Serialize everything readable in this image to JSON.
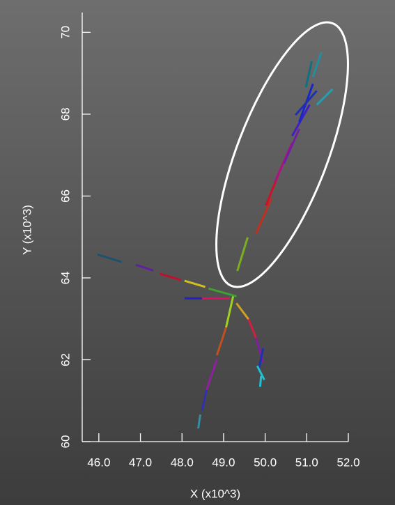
{
  "chart_data": {
    "type": "line",
    "x_label": "X (x10^3)",
    "y_label": "Y (x10^3)",
    "xlim": [
      45.6,
      52.0
    ],
    "ylim": [
      60,
      70.5
    ],
    "xticks": [
      {
        "value": 46,
        "label": "46.0"
      },
      {
        "value": 47,
        "label": "47.0"
      },
      {
        "value": 48,
        "label": "48.0"
      },
      {
        "value": 49,
        "label": "49.0"
      },
      {
        "value": 50,
        "label": "50.0"
      },
      {
        "value": 51,
        "label": "51.0"
      },
      {
        "value": 52,
        "label": "52.0"
      }
    ],
    "yticks": [
      60,
      62,
      64,
      66,
      68,
      70
    ],
    "series": [
      {
        "color": "#7ab020",
        "x": [
          49.33,
          49.58
        ],
        "values": [
          64.17,
          64.99
        ]
      },
      {
        "color": "#c03020",
        "x": [
          49.78,
          50.15
        ],
        "values": [
          65.08,
          65.94
        ]
      },
      {
        "color": "#d0102a",
        "x": [
          50.02,
          50.32
        ],
        "values": [
          65.77,
          66.53
        ]
      },
      {
        "color": "#b01080",
        "x": [
          50.23,
          50.65
        ],
        "values": [
          66.33,
          67.3
        ]
      },
      {
        "color": "#7020a0",
        "x": [
          50.45,
          50.82
        ],
        "values": [
          66.79,
          67.64
        ]
      },
      {
        "color": "#4020c0",
        "x": [
          50.65,
          51.07
        ],
        "values": [
          67.47,
          68.23
        ]
      },
      {
        "color": "#1828c8",
        "x": [
          50.82,
          51.15
        ],
        "values": [
          67.81,
          68.74
        ]
      },
      {
        "color": "#107080",
        "x": [
          50.98,
          51.12
        ],
        "values": [
          68.66,
          69.29
        ]
      },
      {
        "color": "#2090a0",
        "x": [
          51.15,
          51.35
        ],
        "values": [
          68.91,
          69.51
        ]
      },
      {
        "color": "#20a0b0",
        "x": [
          51.24,
          51.62
        ],
        "values": [
          68.23,
          68.61
        ]
      },
      {
        "color": "#2030b0",
        "x": [
          50.73,
          51.24
        ],
        "values": [
          67.98,
          68.57
        ]
      },
      {
        "color": "#205070",
        "x": [
          45.97,
          46.55
        ],
        "values": [
          64.57,
          64.39
        ]
      },
      {
        "color": "#6020a0",
        "x": [
          46.89,
          47.31
        ],
        "values": [
          64.32,
          64.18
        ]
      },
      {
        "color": "#c01030",
        "x": [
          47.47,
          47.97
        ],
        "values": [
          64.1,
          63.95
        ]
      },
      {
        "color": "#d0c020",
        "x": [
          48.06,
          48.56
        ],
        "values": [
          63.93,
          63.78
        ]
      },
      {
        "color": "#40a030",
        "x": [
          48.64,
          49.31
        ],
        "values": [
          63.74,
          63.55
        ]
      },
      {
        "color": "#2020d0",
        "x": [
          48.06,
          48.48
        ],
        "values": [
          63.5,
          63.5
        ]
      },
      {
        "color": "#e01060",
        "x": [
          48.48,
          49.15
        ],
        "values": [
          63.5,
          63.5
        ]
      },
      {
        "color": "#a0d020",
        "x": [
          49.23,
          49.06
        ],
        "values": [
          63.55,
          62.79
        ]
      },
      {
        "color": "#c05020",
        "x": [
          49.06,
          48.84
        ],
        "values": [
          62.79,
          62.11
        ]
      },
      {
        "color": "#9020a0",
        "x": [
          48.84,
          48.59
        ],
        "values": [
          62.02,
          61.26
        ]
      },
      {
        "color": "#3030b0",
        "x": [
          48.59,
          48.48
        ],
        "values": [
          61.26,
          60.75
        ]
      },
      {
        "color": "#3090a0",
        "x": [
          48.44,
          48.39
        ],
        "values": [
          60.66,
          60.32
        ]
      },
      {
        "color": "#d0a020",
        "x": [
          49.31,
          49.6
        ],
        "values": [
          63.38,
          62.99
        ]
      },
      {
        "color": "#d02040",
        "x": [
          49.6,
          49.78
        ],
        "values": [
          62.99,
          62.53
        ]
      },
      {
        "color": "#8020a0",
        "x": [
          49.78,
          49.95
        ],
        "values": [
          62.53,
          61.94
        ]
      },
      {
        "color": "#2030b0",
        "x": [
          49.95,
          49.85
        ],
        "values": [
          62.28,
          61.77
        ]
      },
      {
        "color": "#20c0d0",
        "x": [
          49.81,
          49.98
        ],
        "values": [
          61.85,
          61.51
        ]
      },
      {
        "color": "#20c0d0",
        "x": [
          49.9,
          49.88
        ],
        "values": [
          61.6,
          61.34
        ]
      }
    ]
  }
}
